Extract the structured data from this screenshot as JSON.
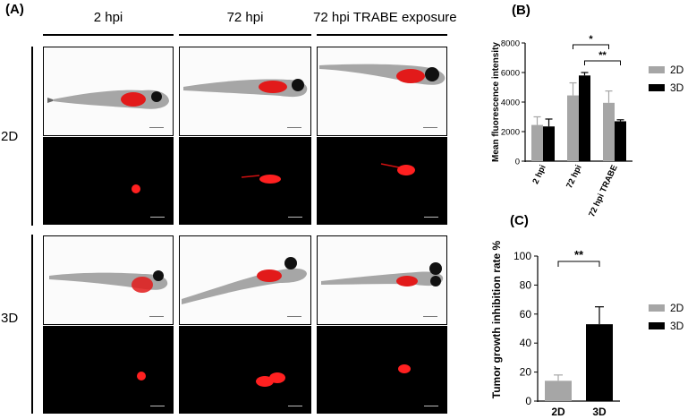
{
  "panelA": {
    "label": "(A)",
    "columns": [
      "2 hpi",
      "72 hpi",
      "72 hpi TRABE exposure"
    ],
    "rows": [
      "2D",
      "3D"
    ],
    "images": [
      {
        "row": "2D",
        "col": "2 hpi",
        "kind": "brightfield-zebrafish-larva"
      },
      {
        "row": "2D",
        "col": "72 hpi",
        "kind": "brightfield-zebrafish-larva"
      },
      {
        "row": "2D",
        "col": "72 hpi TRABE exposure",
        "kind": "brightfield-zebrafish-larva"
      },
      {
        "row": "2D",
        "col": "2 hpi",
        "kind": "red-fluorescence"
      },
      {
        "row": "2D",
        "col": "72 hpi",
        "kind": "red-fluorescence"
      },
      {
        "row": "2D",
        "col": "72 hpi TRABE exposure",
        "kind": "red-fluorescence"
      },
      {
        "row": "3D",
        "col": "2 hpi",
        "kind": "brightfield-zebrafish-larva"
      },
      {
        "row": "3D",
        "col": "72 hpi",
        "kind": "brightfield-zebrafish-larva"
      },
      {
        "row": "3D",
        "col": "72 hpi TRABE exposure",
        "kind": "brightfield-zebrafish-larva"
      },
      {
        "row": "3D",
        "col": "2 hpi",
        "kind": "red-fluorescence"
      },
      {
        "row": "3D",
        "col": "72 hpi",
        "kind": "red-fluorescence"
      },
      {
        "row": "3D",
        "col": "72 hpi TRABE exposure",
        "kind": "red-fluorescence"
      }
    ]
  },
  "chart_data": [
    {
      "panel": "(B)",
      "type": "bar",
      "categories": [
        "2 hpi",
        "72 hpi",
        "72 hpi TRABE"
      ],
      "series": [
        {
          "name": "2D",
          "color": "#a6a6a6",
          "values": [
            2450,
            4450,
            3950
          ],
          "errors": [
            550,
            850,
            800
          ]
        },
        {
          "name": "3D",
          "color": "#000000",
          "values": [
            2350,
            5800,
            2700
          ],
          "errors": [
            500,
            200,
            100
          ]
        }
      ],
      "ylabel": "Mean fluorescence intensity",
      "ylim": [
        0,
        8000
      ],
      "yticks": [
        0,
        2000,
        4000,
        6000,
        8000
      ],
      "legend": "right",
      "significance": [
        {
          "text": "*",
          "between": [
            "72 hpi 2D",
            "72 hpi TRABE 2D"
          ]
        },
        {
          "text": "**",
          "between": [
            "72 hpi 3D",
            "72 hpi TRABE 3D"
          ]
        }
      ]
    },
    {
      "panel": "(C)",
      "type": "bar",
      "categories": [
        "2D",
        "3D"
      ],
      "values": [
        14,
        53
      ],
      "errors": [
        4,
        12
      ],
      "colors": [
        "#a6a6a6",
        "#000000"
      ],
      "legend_items": [
        {
          "name": "2D",
          "color": "#a6a6a6"
        },
        {
          "name": "3D",
          "color": "#000000"
        }
      ],
      "ylabel": "Tumor growth inhibition rate %",
      "ylim": [
        0,
        100
      ],
      "yticks": [
        0,
        20,
        40,
        60,
        80,
        100
      ],
      "legend": "right",
      "significance": [
        {
          "text": "**",
          "between": [
            "2D",
            "3D"
          ]
        }
      ]
    }
  ]
}
